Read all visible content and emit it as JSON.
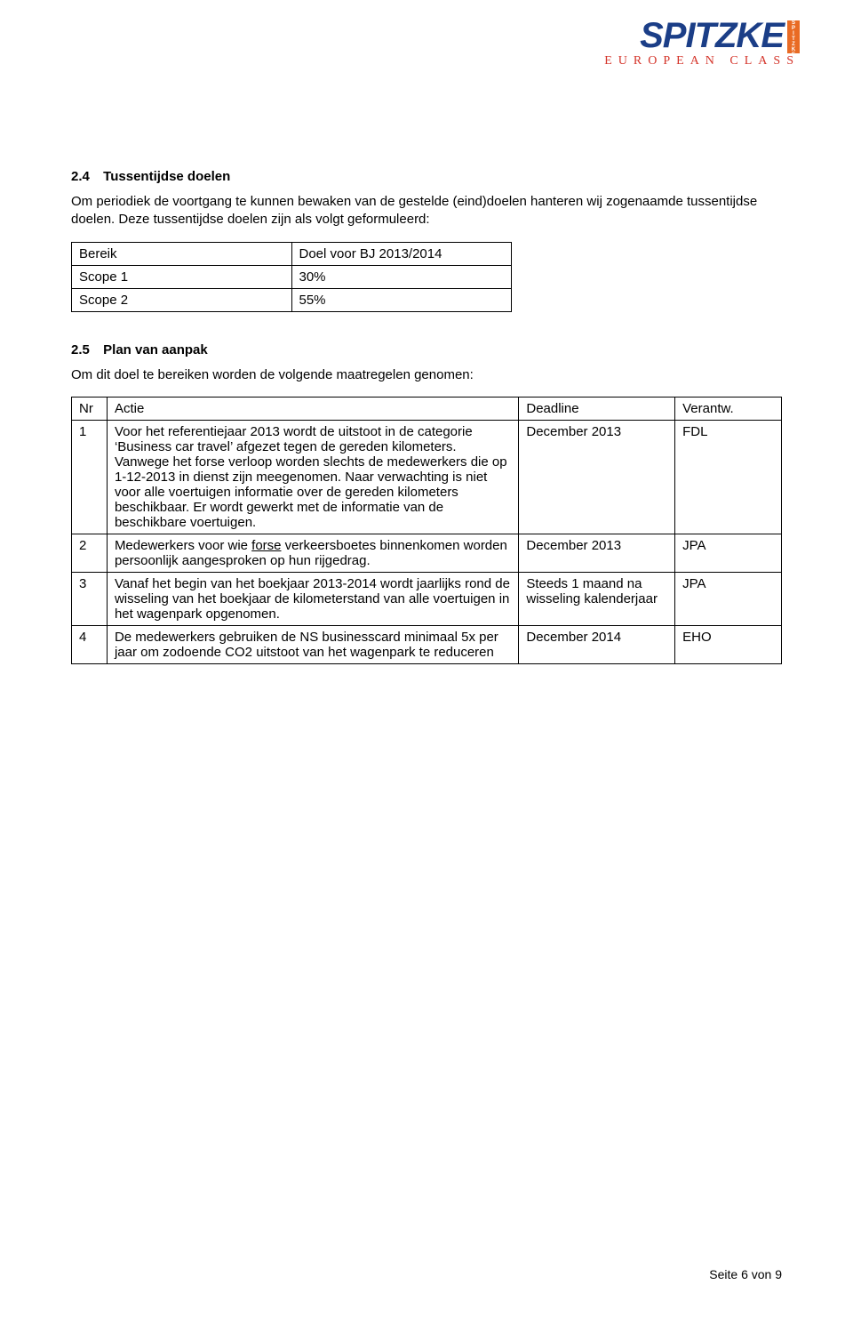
{
  "logo": {
    "name": "SPITZKE",
    "name_color": "#1b3e87",
    "name_fontsize": 40,
    "strip_bg": "#e96b24",
    "strip_color": "#ffffff",
    "strip_fontsize": 6,
    "subtitle": "EUROPEAN CLASS",
    "subtitle_color": "#d4342a",
    "subtitle_fontsize": 14
  },
  "section1": {
    "num": "2.4",
    "title": "Tussentijdse doelen",
    "para": "Om periodiek de voortgang te kunnen bewaken van de gestelde (eind)doelen hanteren wij zogenaamde tussentijdse doelen. Deze tussentijdse doelen zijn als volgt geformuleerd:"
  },
  "table1": {
    "h1": "Bereik",
    "h2": "Doel voor BJ 2013/2014",
    "rows": [
      {
        "c1": "Scope 1",
        "c2": "30%"
      },
      {
        "c1": "Scope 2",
        "c2": "55%"
      }
    ]
  },
  "section2": {
    "num": "2.5",
    "title": "Plan van aanpak",
    "para": "Om dit doel te bereiken worden de volgende maatregelen genomen:"
  },
  "table2": {
    "headers": {
      "nr": "Nr",
      "actie": "Actie",
      "deadline": "Deadline",
      "verantw": "Verantw."
    },
    "rows": [
      {
        "nr": "1",
        "actie_before": "Voor het referentiejaar 2013 wordt de uitstoot in de categorie ‘Business car travel’ afgezet tegen de gereden kilometers. Vanwege het forse verloop worden slechts de medewerkers die op 1-12-2013 in dienst zijn meegenomen. Naar verwachting is niet voor alle voertuigen informatie over de gereden kilometers beschikbaar. Er wordt gewerkt met de informatie van de beschikbare voertuigen.",
        "underlined": "",
        "actie_after": "",
        "deadline": "December 2013",
        "verantw": "FDL"
      },
      {
        "nr": "2",
        "actie_before": "Medewerkers voor wie ",
        "underlined": "forse",
        "actie_after": " verkeersboetes binnenkomen worden persoonlijk aangesproken op hun rijgedrag.",
        "deadline": "December 2013",
        "verantw": "JPA"
      },
      {
        "nr": "3",
        "actie_before": "Vanaf het begin van het boekjaar 2013-2014 wordt jaarlijks rond de wisseling van het boekjaar de kilometerstand van alle voertuigen in het wagenpark opgenomen.",
        "underlined": "",
        "actie_after": "",
        "deadline": "Steeds 1 maand na wisseling kalenderjaar",
        "verantw": "JPA"
      },
      {
        "nr": "4",
        "actie_before": "De medewerkers gebruiken de NS businesscard minimaal 5x per jaar om zodoende CO2 uitstoot van het wagenpark te reduceren",
        "underlined": "",
        "actie_after": "",
        "deadline": "December 2014",
        "verantw": "EHO"
      }
    ]
  },
  "footer": {
    "text": "Seite 6 von 9"
  }
}
